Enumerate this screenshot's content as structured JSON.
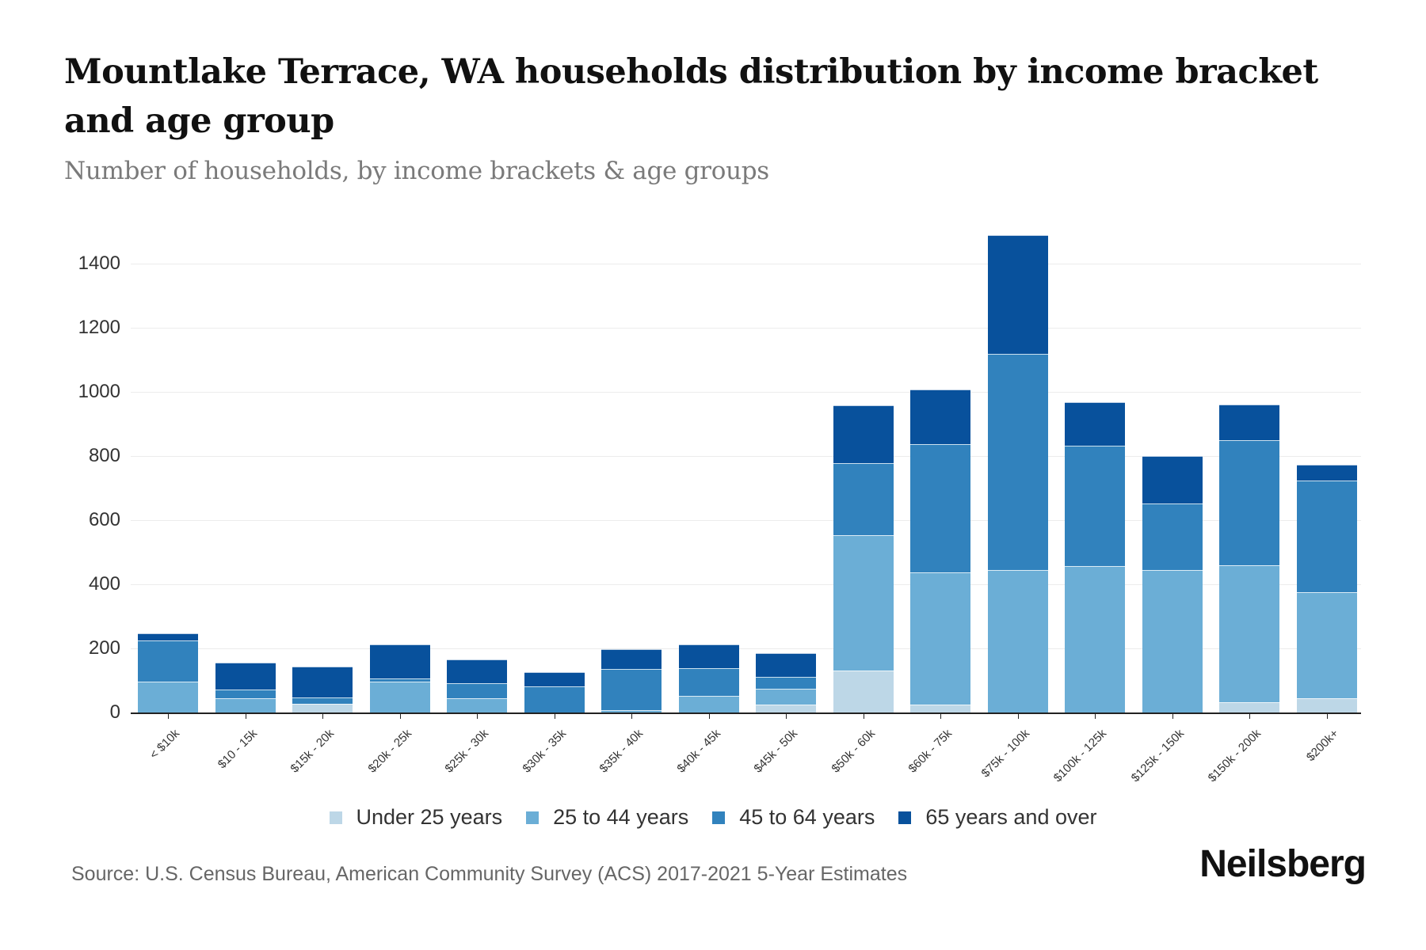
{
  "header": {
    "title": "Mountlake Terrace, WA households distribution by income bracket and age group",
    "subtitle": "Number of households, by income brackets & age groups"
  },
  "legend": [
    {
      "label": "Under 25 years",
      "color": "#bdd7e7"
    },
    {
      "label": "25 to 44 years",
      "color": "#6baed6"
    },
    {
      "label": "45 to 64 years",
      "color": "#3182bd"
    },
    {
      "label": "65 years and over",
      "color": "#08519c"
    }
  ],
  "footer": {
    "source": "Source: U.S. Census Bureau, American Community Survey (ACS) 2017-2021 5-Year Estimates",
    "brand": "Neilsberg"
  },
  "chart_data": {
    "type": "bar",
    "stacked": true,
    "title": "Mountlake Terrace, WA households distribution by income bracket and age group",
    "subtitle": "Number of households, by income brackets & age groups",
    "xlabel": "",
    "ylabel": "",
    "ylim": [
      0,
      1400
    ],
    "yticks": [
      0,
      200,
      400,
      600,
      800,
      1000,
      1200,
      1400
    ],
    "grid": true,
    "legend_position": "bottom",
    "categories": [
      "< $10k",
      "$10 - 15k",
      "$15k - 20k",
      "$20k - 25k",
      "$25k - 30k",
      "$30k - 35k",
      "$35k - 40k",
      "$40k - 45k",
      "$45k - 50k",
      "$50k - 60k",
      "$60k - 75k",
      "$75k - 100k",
      "$100k - 125k",
      "$125k - 150k",
      "$150k - 200k",
      "$200k+"
    ],
    "series": [
      {
        "name": "Under 25 years",
        "color": "#bdd7e7",
        "values": [
          0,
          0,
          27,
          0,
          0,
          0,
          0,
          0,
          25,
          130,
          25,
          0,
          0,
          0,
          31,
          45
        ]
      },
      {
        "name": "25 to 44 years",
        "color": "#6baed6",
        "values": [
          96,
          44,
          0,
          96,
          44,
          0,
          8,
          52,
          49,
          423,
          413,
          445,
          456,
          445,
          429,
          331
        ]
      },
      {
        "name": "45 to 64 years",
        "color": "#3182bd",
        "values": [
          129,
          28,
          20,
          10,
          47,
          81,
          128,
          87,
          37,
          225,
          400,
          673,
          377,
          208,
          389,
          347
        ]
      },
      {
        "name": "65 years and over",
        "color": "#08519c",
        "values": [
          22,
          84,
          96,
          106,
          75,
          45,
          62,
          74,
          73,
          180,
          170,
          370,
          136,
          147,
          111,
          50
        ]
      }
    ]
  }
}
